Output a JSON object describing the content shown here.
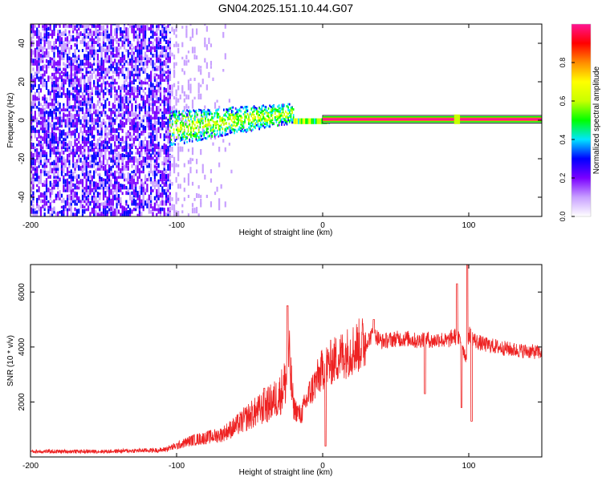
{
  "title": "GN04.2025.151.10.44.G07",
  "chart_data": [
    {
      "type": "heatmap",
      "xlabel": "Height of straight line (km)",
      "ylabel": "Frequency (Hz)",
      "xlim": [
        -200,
        150
      ],
      "ylim": [
        -50,
        50
      ],
      "xticks": [
        -200,
        -100,
        0,
        100
      ],
      "xtick_labels": [
        "-200",
        "-100",
        "0",
        "100"
      ],
      "yticks": [
        -40,
        -20,
        0,
        20,
        40
      ],
      "ytick_labels": [
        "-40",
        "-20",
        "0",
        "20",
        "40"
      ],
      "grid": false,
      "colorbar": {
        "label": "Normalized spectral amplitude",
        "range": [
          0,
          1
        ],
        "ticks": [
          0.0,
          0.2,
          0.4,
          0.6,
          0.8
        ],
        "tick_labels": [
          "0.0",
          "0.2",
          "0.4",
          "0.6",
          "0.8"
        ],
        "colors": [
          "#ffffff",
          "#c8a0ff",
          "#7b00ff",
          "#0000ff",
          "#00e5ff",
          "#00ff00",
          "#c8ff00",
          "#ffff00",
          "#ff8c00",
          "#ff0000",
          "#ff1493"
        ]
      },
      "regions": [
        {
          "name": "diffuse noise",
          "x": [
            -200,
            -105
          ],
          "y": [
            -50,
            50
          ],
          "level": 0.2
        },
        {
          "name": "scattered noise",
          "x": [
            -105,
            -60
          ],
          "y": [
            -50,
            50
          ],
          "level": 0.05
        },
        {
          "name": "spread signal",
          "x": [
            -105,
            -20
          ],
          "y_center": [
            -5,
            3
          ],
          "level": 0.45
        },
        {
          "name": "carrier",
          "x": [
            0,
            150
          ],
          "y_center": 0.5,
          "level": 0.95
        }
      ]
    },
    {
      "type": "line",
      "xlabel": "Height of straight line (km)",
      "ylabel": "SNR (10 * v/v)",
      "xlim": [
        -200,
        150
      ],
      "ylim": [
        0,
        7000
      ],
      "xticks": [
        -200,
        -100,
        0,
        100
      ],
      "xtick_labels": [
        "-200",
        "-100",
        "0",
        "100"
      ],
      "yticks": [
        2000,
        4000,
        6000
      ],
      "ytick_labels": [
        "2000",
        "4000",
        "6000"
      ],
      "grid": false,
      "line_color": "#ee2222",
      "envelope": {
        "x": [
          -200,
          -150,
          -110,
          -100,
          -90,
          -80,
          -70,
          -60,
          -50,
          -40,
          -30,
          -25,
          -23,
          -20,
          -15,
          -10,
          -5,
          0,
          5,
          10,
          20,
          30,
          35,
          40,
          50,
          60,
          65,
          70,
          75,
          80,
          85,
          90,
          95,
          98,
          100,
          105,
          110,
          120,
          130,
          140,
          150
        ],
        "y": [
          200,
          200,
          250,
          400,
          600,
          700,
          800,
          1100,
          1500,
          1800,
          2200,
          2800,
          3600,
          1800,
          1500,
          2200,
          2700,
          3200,
          3400,
          3600,
          3900,
          4200,
          4500,
          4200,
          4300,
          4300,
          4200,
          4350,
          4200,
          4300,
          4200,
          4400,
          4200,
          3600,
          4500,
          4200,
          4100,
          4000,
          3900,
          3850,
          3800
        ]
      },
      "spikes": [
        {
          "x": -24,
          "y": 5500
        },
        {
          "x": -40,
          "y": 2500
        },
        {
          "x": 35,
          "y": 5000
        },
        {
          "x": 70,
          "y": 2300
        },
        {
          "x": 92,
          "y": 6300
        },
        {
          "x": 99,
          "y": 7000
        },
        {
          "x": 95,
          "y": 1800
        },
        {
          "x": 102,
          "y": 1300
        },
        {
          "x": 2,
          "y": 400
        }
      ]
    }
  ]
}
